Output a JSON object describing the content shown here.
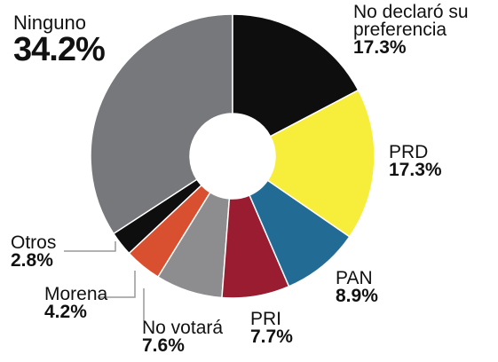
{
  "chart_data": {
    "type": "pie",
    "categories": [
      "No declaró su preferencia",
      "PRD",
      "PAN",
      "PRI",
      "No votará",
      "Morena",
      "Otros",
      "Ninguno"
    ],
    "values": [
      17.3,
      17.3,
      8.9,
      7.7,
      7.6,
      4.2,
      2.8,
      34.2
    ],
    "value_labels": [
      "17.3%",
      "17.3%",
      "8.9%",
      "7.7%",
      "7.6%",
      "4.2%",
      "2.8%",
      "34.2%"
    ],
    "colors": [
      "#0e0e0e",
      "#f6ee3b",
      "#216b94",
      "#9a1c31",
      "#8d8d8f",
      "#d8502f",
      "#0e0e0e",
      "#77787b"
    ]
  }
}
